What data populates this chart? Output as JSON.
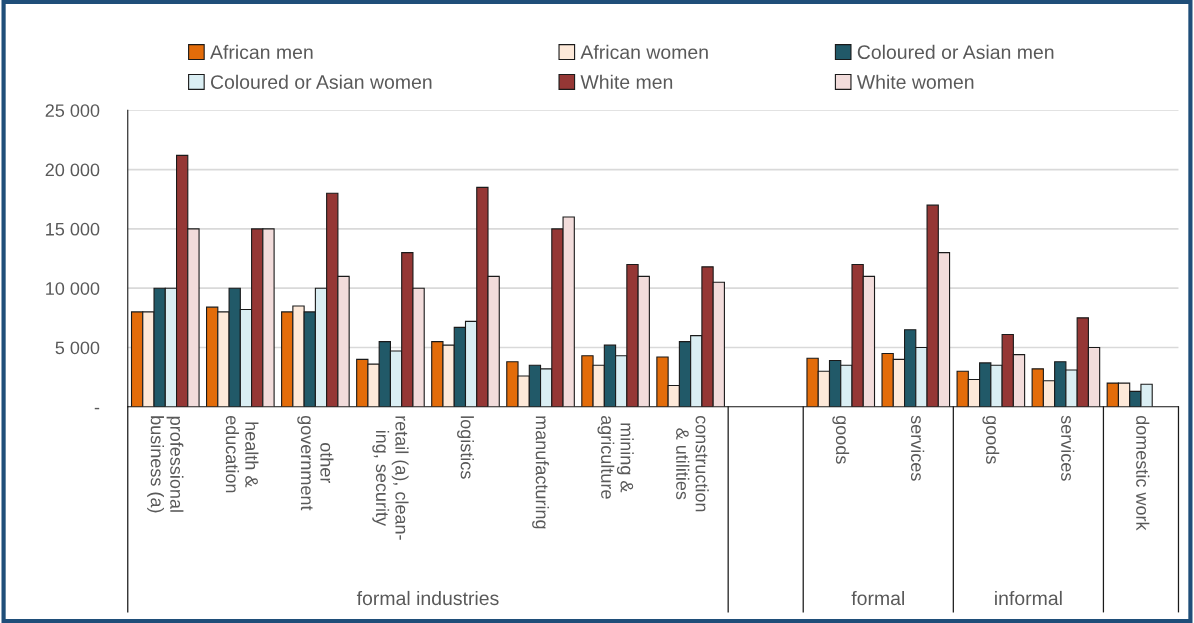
{
  "chart_data": {
    "type": "bar",
    "categories": [
      "professional\nbusiness (a)",
      "health &\neducation",
      "other\ngovernment",
      "retail (a), clean-\ning, security",
      "logistics",
      "manufacturing",
      "mining &\nagriculture",
      "construction\n& utilities",
      null,
      "goods",
      "services",
      "goods",
      "services",
      "domestic work"
    ],
    "series": [
      {
        "name": "African men",
        "color": "#e36c0a",
        "values": [
          8000,
          8400,
          8000,
          4000,
          5500,
          3800,
          4300,
          4200,
          null,
          4100,
          4500,
          3000,
          3200,
          2000
        ]
      },
      {
        "name": "African women",
        "color": "#fde9d9",
        "values": [
          8000,
          8000,
          8500,
          3600,
          5200,
          2600,
          3500,
          1800,
          null,
          3000,
          4000,
          2300,
          2200,
          2000
        ]
      },
      {
        "name": "Coloured or Asian men",
        "color": "#215968",
        "values": [
          10000,
          10000,
          8000,
          5500,
          6700,
          3500,
          5200,
          5500,
          null,
          3900,
          6500,
          3700,
          3800,
          1300
        ]
      },
      {
        "name": "Coloured or Asian women",
        "color": "#daeef3",
        "values": [
          10000,
          8200,
          10000,
          4700,
          7200,
          3200,
          4300,
          6000,
          null,
          3500,
          5000,
          3500,
          3100,
          1900
        ]
      },
      {
        "name": "White men",
        "color": "#953735",
        "values": [
          21200,
          15000,
          18000,
          13000,
          18500,
          15000,
          12000,
          11800,
          null,
          12000,
          17000,
          6100,
          7500,
          null
        ]
      },
      {
        "name": "White women",
        "color": "#f2dcdb",
        "values": [
          15000,
          15000,
          11000,
          10000,
          11000,
          16000,
          11000,
          10500,
          null,
          11000,
          13000,
          4400,
          5000,
          null
        ]
      }
    ],
    "ylim": [
      0,
      25000
    ],
    "yticks": [
      {
        "value": 0,
        "label": "-"
      },
      {
        "value": 5000,
        "label": "5 000"
      },
      {
        "value": 10000,
        "label": "10 000"
      },
      {
        "value": 15000,
        "label": "15 000"
      },
      {
        "value": 20000,
        "label": "20 000"
      },
      {
        "value": 25000,
        "label": "25 000"
      }
    ],
    "annotations": [
      "formal industries",
      "formal",
      "informal"
    ],
    "grid": "y",
    "legend": "top"
  }
}
